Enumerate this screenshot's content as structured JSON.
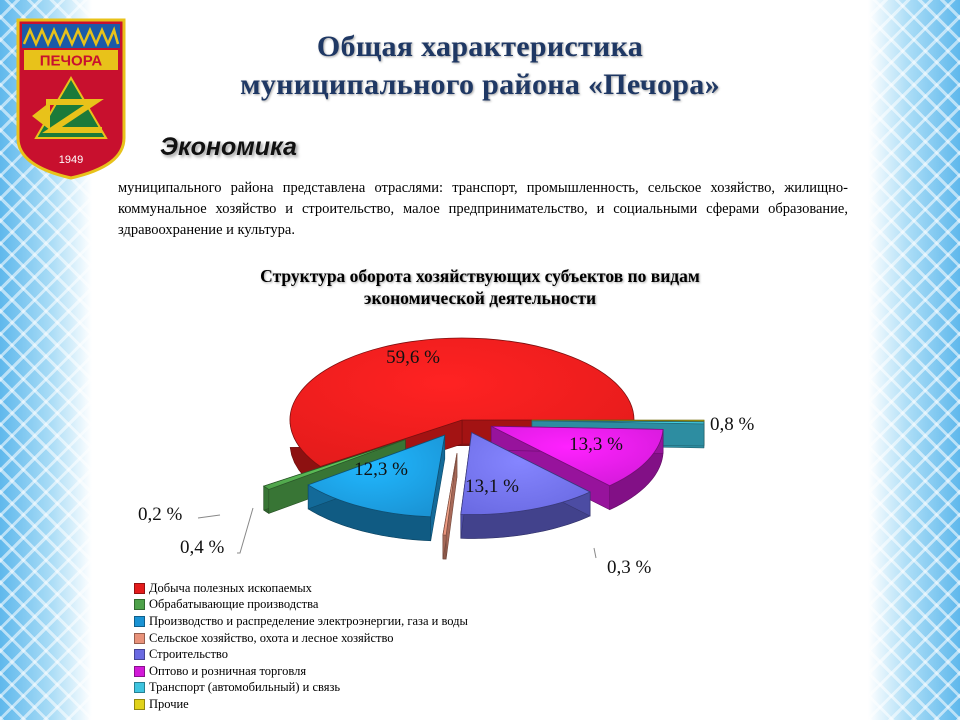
{
  "emblem": {
    "name": "ПЕЧОРА",
    "year": "1949"
  },
  "title": {
    "line1": "Общая характеристика",
    "line2": "муниципального района «Печора»"
  },
  "section": "Экономика",
  "description": "муниципального района представлена отраслями: транспорт, промышленность, сельское хозяйство, жилищно-коммунальное хозяйство и строительство, малое предпринимательство, и социальными сферами образование, здравоохранение и культура.",
  "chart_data": {
    "type": "pie",
    "title": "Структура оборота хозяйствующих субъектов по видам экономической деятельности",
    "title_lines": [
      "Структура оборота хозяйствующих субъектов по видам",
      "экономической деятельности"
    ],
    "legend_position": "bottom-left",
    "slices": [
      {
        "name": "Добыча полезных ископаемых",
        "value": 59.6,
        "label": "59,6 %",
        "color": "#e31b1b"
      },
      {
        "name": "Обрабатывающие производства",
        "value": 0.8,
        "label": "0,8 %",
        "color": "#4ea24a"
      },
      {
        "name": "Производство и распределение электроэнергии, газа и воды",
        "value": 13.3,
        "label": "13,3 %",
        "color": "#1a93d4"
      },
      {
        "name": "Сельское хозяйство, охота и лесное хозяйство",
        "value": 0.3,
        "label": "0,3 %",
        "color": "#e8927a"
      },
      {
        "name": "Строительство",
        "value": 13.1,
        "label": "13,1 %",
        "color": "#6a6ae2"
      },
      {
        "name": "Оптово и розничная торговля",
        "value": 12.3,
        "label": "12,3 %",
        "color": "#d21ad8"
      },
      {
        "name": "Транспорт (автомобильный) и связь",
        "value": 0.4,
        "label": "0,4 %",
        "color": "#3ec4df"
      },
      {
        "name": "Прочие",
        "value": 0.2,
        "label": "0,2 %",
        "color": "#e0d21a"
      }
    ]
  }
}
